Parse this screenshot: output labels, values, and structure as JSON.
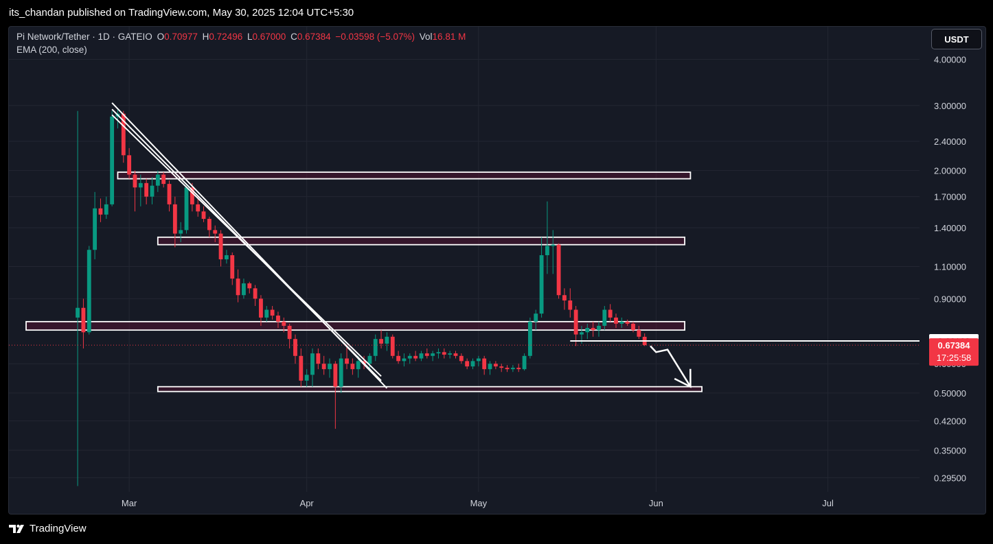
{
  "header": {
    "published_text": "its_chandan published on TradingView.com, May 30, 2025 12:04 UTC+5:30"
  },
  "legend": {
    "symbol": "Pi Network/Tether · 1D · GATEIO",
    "o_label": "O",
    "o_value": "0.70977",
    "h_label": "H",
    "h_value": "0.72496",
    "l_label": "L",
    "l_value": "0.67000",
    "c_label": "C",
    "c_value": "0.67384",
    "change": "−0.03598 (−5.07%)",
    "vol_label": "Vol",
    "vol_value": "16.81 M",
    "indicator": "EMA (200, close)"
  },
  "currency_button": "USDT",
  "footer": {
    "brand": "TradingView"
  },
  "colors": {
    "up": "#089981",
    "down": "#f23645",
    "background": "#161a25",
    "grid": "#232632",
    "price_tag_current": "#f23645",
    "price_tag_level": "#ffffff"
  },
  "chart_data": {
    "type": "candlestick",
    "y_scale": "log",
    "ylim": [
      0.27,
      4.9
    ],
    "y_ticks": [
      {
        "value": 4.0,
        "label": "4.00000"
      },
      {
        "value": 3.0,
        "label": "3.00000"
      },
      {
        "value": 2.4,
        "label": "2.40000"
      },
      {
        "value": 2.0,
        "label": "2.00000"
      },
      {
        "value": 1.7,
        "label": "1.70000"
      },
      {
        "value": 1.4,
        "label": "1.40000"
      },
      {
        "value": 1.1,
        "label": "1.10000"
      },
      {
        "value": 0.9,
        "label": "0.90000"
      },
      {
        "value": 0.6,
        "label": "0.60000"
      },
      {
        "value": 0.5,
        "label": "0.50000"
      },
      {
        "value": 0.42,
        "label": "0.42000"
      },
      {
        "value": 0.35,
        "label": "0.35000"
      },
      {
        "value": 0.295,
        "label": "0.29500"
      }
    ],
    "x_ticks": [
      {
        "date": "2025-03-01",
        "label": "Mar"
      },
      {
        "date": "2025-04-01",
        "label": "Apr"
      },
      {
        "date": "2025-05-01",
        "label": "May"
      },
      {
        "date": "2025-06-01",
        "label": "Jun"
      },
      {
        "date": "2025-07-01",
        "label": "Jul"
      }
    ],
    "xlim": [
      "2025-02-08",
      "2025-07-17"
    ],
    "candles": [
      {
        "d": "2025-02-20",
        "o": 0.8,
        "h": 2.9,
        "l": 0.28,
        "c": 0.85
      },
      {
        "d": "2025-02-21",
        "o": 0.85,
        "h": 0.9,
        "l": 0.66,
        "c": 0.73
      },
      {
        "d": "2025-02-22",
        "o": 0.73,
        "h": 1.25,
        "l": 0.72,
        "c": 1.22
      },
      {
        "d": "2025-02-23",
        "o": 1.22,
        "h": 1.75,
        "l": 1.15,
        "c": 1.58
      },
      {
        "d": "2025-02-24",
        "o": 1.58,
        "h": 1.68,
        "l": 1.45,
        "c": 1.52
      },
      {
        "d": "2025-02-25",
        "o": 1.52,
        "h": 1.7,
        "l": 1.48,
        "c": 1.62
      },
      {
        "d": "2025-02-26",
        "o": 1.62,
        "h": 2.9,
        "l": 1.6,
        "c": 2.8
      },
      {
        "d": "2025-02-27",
        "o": 2.8,
        "h": 2.95,
        "l": 2.6,
        "c": 2.85
      },
      {
        "d": "2025-02-28",
        "o": 2.85,
        "h": 2.9,
        "l": 2.1,
        "c": 2.2
      },
      {
        "d": "2025-03-01",
        "o": 2.2,
        "h": 2.3,
        "l": 1.9,
        "c": 1.95
      },
      {
        "d": "2025-03-02",
        "o": 1.95,
        "h": 2.0,
        "l": 1.55,
        "c": 1.8
      },
      {
        "d": "2025-03-03",
        "o": 1.8,
        "h": 1.95,
        "l": 1.6,
        "c": 1.85
      },
      {
        "d": "2025-03-04",
        "o": 1.85,
        "h": 1.9,
        "l": 1.62,
        "c": 1.7
      },
      {
        "d": "2025-03-05",
        "o": 1.7,
        "h": 1.92,
        "l": 1.62,
        "c": 1.82
      },
      {
        "d": "2025-03-06",
        "o": 1.82,
        "h": 2.0,
        "l": 1.75,
        "c": 1.95
      },
      {
        "d": "2025-03-07",
        "o": 1.95,
        "h": 1.98,
        "l": 1.8,
        "c": 1.84
      },
      {
        "d": "2025-03-08",
        "o": 1.84,
        "h": 1.88,
        "l": 1.55,
        "c": 1.62
      },
      {
        "d": "2025-03-09",
        "o": 1.62,
        "h": 1.7,
        "l": 1.24,
        "c": 1.35
      },
      {
        "d": "2025-03-10",
        "o": 1.35,
        "h": 1.45,
        "l": 1.28,
        "c": 1.38
      },
      {
        "d": "2025-03-11",
        "o": 1.38,
        "h": 1.82,
        "l": 1.35,
        "c": 1.8
      },
      {
        "d": "2025-03-12",
        "o": 1.8,
        "h": 1.85,
        "l": 1.55,
        "c": 1.62
      },
      {
        "d": "2025-03-13",
        "o": 1.62,
        "h": 1.7,
        "l": 1.5,
        "c": 1.55
      },
      {
        "d": "2025-03-14",
        "o": 1.55,
        "h": 1.6,
        "l": 1.45,
        "c": 1.48
      },
      {
        "d": "2025-03-15",
        "o": 1.48,
        "h": 1.5,
        "l": 1.32,
        "c": 1.38
      },
      {
        "d": "2025-03-16",
        "o": 1.38,
        "h": 1.42,
        "l": 1.28,
        "c": 1.35
      },
      {
        "d": "2025-03-17",
        "o": 1.35,
        "h": 1.38,
        "l": 1.1,
        "c": 1.15
      },
      {
        "d": "2025-03-18",
        "o": 1.15,
        "h": 1.22,
        "l": 1.12,
        "c": 1.18
      },
      {
        "d": "2025-03-19",
        "o": 1.18,
        "h": 1.2,
        "l": 0.98,
        "c": 1.02
      },
      {
        "d": "2025-03-20",
        "o": 1.02,
        "h": 1.08,
        "l": 0.88,
        "c": 0.92
      },
      {
        "d": "2025-03-21",
        "o": 0.92,
        "h": 1.02,
        "l": 0.9,
        "c": 0.99
      },
      {
        "d": "2025-03-22",
        "o": 0.99,
        "h": 1.0,
        "l": 0.93,
        "c": 0.96
      },
      {
        "d": "2025-03-23",
        "o": 0.96,
        "h": 0.98,
        "l": 0.86,
        "c": 0.9
      },
      {
        "d": "2025-03-24",
        "o": 0.9,
        "h": 0.92,
        "l": 0.76,
        "c": 0.8
      },
      {
        "d": "2025-03-25",
        "o": 0.8,
        "h": 0.86,
        "l": 0.78,
        "c": 0.84
      },
      {
        "d": "2025-03-26",
        "o": 0.84,
        "h": 0.86,
        "l": 0.79,
        "c": 0.81
      },
      {
        "d": "2025-03-27",
        "o": 0.81,
        "h": 0.83,
        "l": 0.75,
        "c": 0.78
      },
      {
        "d": "2025-03-28",
        "o": 0.78,
        "h": 0.8,
        "l": 0.73,
        "c": 0.76
      },
      {
        "d": "2025-03-29",
        "o": 0.76,
        "h": 0.77,
        "l": 0.66,
        "c": 0.7
      },
      {
        "d": "2025-03-30",
        "o": 0.7,
        "h": 0.72,
        "l": 0.6,
        "c": 0.63
      },
      {
        "d": "2025-03-31",
        "o": 0.63,
        "h": 0.66,
        "l": 0.52,
        "c": 0.54
      },
      {
        "d": "2025-04-01",
        "o": 0.54,
        "h": 0.58,
        "l": 0.52,
        "c": 0.56
      },
      {
        "d": "2025-04-02",
        "o": 0.56,
        "h": 0.66,
        "l": 0.52,
        "c": 0.64
      },
      {
        "d": "2025-04-03",
        "o": 0.64,
        "h": 0.66,
        "l": 0.58,
        "c": 0.6
      },
      {
        "d": "2025-04-04",
        "o": 0.6,
        "h": 0.63,
        "l": 0.56,
        "c": 0.58
      },
      {
        "d": "2025-04-05",
        "o": 0.58,
        "h": 0.62,
        "l": 0.55,
        "c": 0.6
      },
      {
        "d": "2025-04-06",
        "o": 0.6,
        "h": 0.61,
        "l": 0.4,
        "c": 0.52
      },
      {
        "d": "2025-04-07",
        "o": 0.52,
        "h": 0.64,
        "l": 0.5,
        "c": 0.62
      },
      {
        "d": "2025-04-08",
        "o": 0.62,
        "h": 0.67,
        "l": 0.58,
        "c": 0.6
      },
      {
        "d": "2025-04-09",
        "o": 0.6,
        "h": 0.62,
        "l": 0.56,
        "c": 0.58
      },
      {
        "d": "2025-04-10",
        "o": 0.58,
        "h": 0.63,
        "l": 0.55,
        "c": 0.61
      },
      {
        "d": "2025-04-11",
        "o": 0.61,
        "h": 0.63,
        "l": 0.58,
        "c": 0.6
      },
      {
        "d": "2025-04-12",
        "o": 0.6,
        "h": 0.64,
        "l": 0.58,
        "c": 0.63
      },
      {
        "d": "2025-04-13",
        "o": 0.63,
        "h": 0.72,
        "l": 0.61,
        "c": 0.7
      },
      {
        "d": "2025-04-14",
        "o": 0.7,
        "h": 0.74,
        "l": 0.66,
        "c": 0.68
      },
      {
        "d": "2025-04-15",
        "o": 0.68,
        "h": 0.73,
        "l": 0.65,
        "c": 0.71
      },
      {
        "d": "2025-04-16",
        "o": 0.71,
        "h": 0.72,
        "l": 0.62,
        "c": 0.63
      },
      {
        "d": "2025-04-17",
        "o": 0.63,
        "h": 0.65,
        "l": 0.6,
        "c": 0.61
      },
      {
        "d": "2025-04-18",
        "o": 0.61,
        "h": 0.64,
        "l": 0.59,
        "c": 0.62
      },
      {
        "d": "2025-04-19",
        "o": 0.62,
        "h": 0.64,
        "l": 0.6,
        "c": 0.63
      },
      {
        "d": "2025-04-20",
        "o": 0.63,
        "h": 0.65,
        "l": 0.61,
        "c": 0.62
      },
      {
        "d": "2025-04-21",
        "o": 0.62,
        "h": 0.65,
        "l": 0.61,
        "c": 0.64
      },
      {
        "d": "2025-04-22",
        "o": 0.64,
        "h": 0.66,
        "l": 0.62,
        "c": 0.63
      },
      {
        "d": "2025-04-23",
        "o": 0.63,
        "h": 0.65,
        "l": 0.61,
        "c": 0.64
      },
      {
        "d": "2025-04-24",
        "o": 0.64,
        "h": 0.66,
        "l": 0.62,
        "c": 0.645
      },
      {
        "d": "2025-04-25",
        "o": 0.645,
        "h": 0.66,
        "l": 0.62,
        "c": 0.635
      },
      {
        "d": "2025-04-26",
        "o": 0.635,
        "h": 0.65,
        "l": 0.62,
        "c": 0.64
      },
      {
        "d": "2025-04-27",
        "o": 0.64,
        "h": 0.65,
        "l": 0.62,
        "c": 0.63
      },
      {
        "d": "2025-04-28",
        "o": 0.63,
        "h": 0.64,
        "l": 0.6,
        "c": 0.61
      },
      {
        "d": "2025-04-29",
        "o": 0.61,
        "h": 0.62,
        "l": 0.58,
        "c": 0.59
      },
      {
        "d": "2025-04-30",
        "o": 0.59,
        "h": 0.62,
        "l": 0.58,
        "c": 0.61
      },
      {
        "d": "2025-05-01",
        "o": 0.61,
        "h": 0.63,
        "l": 0.59,
        "c": 0.62
      },
      {
        "d": "2025-05-02",
        "o": 0.62,
        "h": 0.63,
        "l": 0.56,
        "c": 0.58
      },
      {
        "d": "2025-05-03",
        "o": 0.58,
        "h": 0.61,
        "l": 0.56,
        "c": 0.6
      },
      {
        "d": "2025-05-04",
        "o": 0.6,
        "h": 0.61,
        "l": 0.58,
        "c": 0.59
      },
      {
        "d": "2025-05-05",
        "o": 0.59,
        "h": 0.6,
        "l": 0.57,
        "c": 0.585
      },
      {
        "d": "2025-05-06",
        "o": 0.585,
        "h": 0.595,
        "l": 0.57,
        "c": 0.58
      },
      {
        "d": "2025-05-07",
        "o": 0.58,
        "h": 0.595,
        "l": 0.57,
        "c": 0.585
      },
      {
        "d": "2025-05-08",
        "o": 0.585,
        "h": 0.6,
        "l": 0.57,
        "c": 0.58
      },
      {
        "d": "2025-05-09",
        "o": 0.58,
        "h": 0.64,
        "l": 0.575,
        "c": 0.63
      },
      {
        "d": "2025-05-10",
        "o": 0.63,
        "h": 0.8,
        "l": 0.62,
        "c": 0.78
      },
      {
        "d": "2025-05-11",
        "o": 0.78,
        "h": 0.84,
        "l": 0.74,
        "c": 0.82
      },
      {
        "d": "2025-05-12",
        "o": 0.82,
        "h": 1.32,
        "l": 0.8,
        "c": 1.18
      },
      {
        "d": "2025-05-13",
        "o": 1.18,
        "h": 1.65,
        "l": 1.05,
        "c": 1.25
      },
      {
        "d": "2025-05-14",
        "o": 1.25,
        "h": 1.38,
        "l": 1.05,
        "c": 1.26
      },
      {
        "d": "2025-05-15",
        "o": 1.26,
        "h": 1.27,
        "l": 0.9,
        "c": 0.92
      },
      {
        "d": "2025-05-16",
        "o": 0.92,
        "h": 0.96,
        "l": 0.84,
        "c": 0.89
      },
      {
        "d": "2025-05-17",
        "o": 0.89,
        "h": 0.96,
        "l": 0.8,
        "c": 0.84
      },
      {
        "d": "2025-05-18",
        "o": 0.84,
        "h": 0.86,
        "l": 0.67,
        "c": 0.72
      },
      {
        "d": "2025-05-19",
        "o": 0.72,
        "h": 0.76,
        "l": 0.68,
        "c": 0.73
      },
      {
        "d": "2025-05-20",
        "o": 0.73,
        "h": 0.77,
        "l": 0.7,
        "c": 0.75
      },
      {
        "d": "2025-05-21",
        "o": 0.75,
        "h": 0.78,
        "l": 0.71,
        "c": 0.74
      },
      {
        "d": "2025-05-22",
        "o": 0.74,
        "h": 0.78,
        "l": 0.71,
        "c": 0.76
      },
      {
        "d": "2025-05-23",
        "o": 0.76,
        "h": 0.86,
        "l": 0.74,
        "c": 0.84
      },
      {
        "d": "2025-05-24",
        "o": 0.84,
        "h": 0.87,
        "l": 0.78,
        "c": 0.8
      },
      {
        "d": "2025-05-25",
        "o": 0.8,
        "h": 0.82,
        "l": 0.75,
        "c": 0.77
      },
      {
        "d": "2025-05-26",
        "o": 0.77,
        "h": 0.8,
        "l": 0.75,
        "c": 0.78
      },
      {
        "d": "2025-05-27",
        "o": 0.78,
        "h": 0.79,
        "l": 0.76,
        "c": 0.77
      },
      {
        "d": "2025-05-28",
        "o": 0.77,
        "h": 0.78,
        "l": 0.73,
        "c": 0.74
      },
      {
        "d": "2025-05-29",
        "o": 0.74,
        "h": 0.76,
        "l": 0.7,
        "c": 0.71
      },
      {
        "d": "2025-05-30",
        "o": 0.70977,
        "h": 0.72496,
        "l": 0.67,
        "c": 0.67384
      }
    ],
    "zones": [
      {
        "from": "2025-02-27",
        "to": "2025-06-07",
        "low": 1.9,
        "high": 1.98
      },
      {
        "from": "2025-03-06",
        "to": "2025-06-06",
        "low": 1.26,
        "high": 1.32
      },
      {
        "from": "2025-02-11",
        "to": "2025-06-06",
        "low": 0.74,
        "high": 0.78
      },
      {
        "from": "2025-03-06",
        "to": "2025-06-09",
        "low": 0.509,
        "high": 0.52
      }
    ],
    "trendlines": [
      {
        "from": {
          "d": "2025-02-26",
          "p": 3.05
        },
        "to": {
          "d": "2025-04-15",
          "p": 0.515
        }
      },
      {
        "from": {
          "d": "2025-02-26",
          "p": 2.93
        },
        "to": {
          "d": "2025-04-14",
          "p": 0.54
        }
      },
      {
        "from": {
          "d": "2025-02-26",
          "p": 2.83
        },
        "to": {
          "d": "2025-04-14",
          "p": 0.555
        }
      }
    ],
    "support_line": {
      "price": 0.69168,
      "from": "2025-05-17",
      "to": "2025-07-17"
    },
    "projection_arrow": [
      {
        "d": "2025-05-31",
        "p": 0.67
      },
      {
        "d": "2025-06-01",
        "p": 0.645
      },
      {
        "d": "2025-06-03",
        "p": 0.655
      },
      {
        "d": "2025-06-07",
        "p": 0.52
      }
    ],
    "current_price": {
      "value": 0.67384,
      "label": "0.67384",
      "countdown": "17:25:58"
    },
    "level_tag": {
      "value": 0.69168,
      "label": "0.69168"
    }
  }
}
